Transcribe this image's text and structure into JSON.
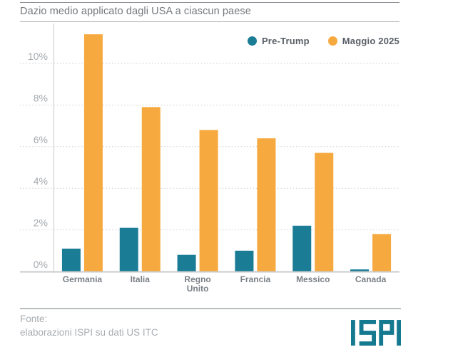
{
  "header": {
    "title": "Dazio medio applicato dagli USA a ciascun paese"
  },
  "chart_data": {
    "type": "bar",
    "title": "Dazio medio applicato dagli USA a ciascun paese",
    "categories": [
      "Germania",
      "Italia",
      "Regno Unito",
      "Francia",
      "Messico",
      "Canada"
    ],
    "series": [
      {
        "name": "Pre-Trump",
        "color": "#1b7c96",
        "values": [
          1.1,
          2.1,
          0.8,
          1.0,
          2.2,
          0.1
        ]
      },
      {
        "name": "Maggio 2025",
        "color": "#f6a93f",
        "values": [
          11.4,
          7.9,
          6.8,
          6.4,
          5.7,
          1.8
        ]
      }
    ],
    "unit": "%",
    "ylim": [
      0,
      12
    ],
    "yticks": [
      0,
      2,
      4,
      6,
      8,
      10
    ],
    "ytick_labels": [
      "0%",
      "2%",
      "4%",
      "6%",
      "8%",
      "10%"
    ],
    "grid": "horizontal-dotted",
    "legend_position": "top-right"
  },
  "legend": {
    "items": [
      {
        "label": "Pre-Trump",
        "color": "#1b7c96"
      },
      {
        "label": "Maggio 2025",
        "color": "#f6a93f"
      }
    ]
  },
  "footer": {
    "source_label": "Fonte:",
    "source_line": "elaborazioni ISPI su dati US ITC",
    "logo": "ISPI"
  },
  "colors": {
    "bar_teal": "#1b7c96",
    "bar_orange": "#f6a93f",
    "title_text": "#74787d",
    "tick_text": "#a5a9ad",
    "category_text": "#7a7f85",
    "legend_text": "#595e66",
    "grid_line": "#cfcfcf",
    "axis_line": "#c5c8ca",
    "baseline": "#c9cbcd",
    "rule_line": "#9ba0a4",
    "footer_text": "#a9adb1",
    "logo_teal": "#15798f"
  }
}
